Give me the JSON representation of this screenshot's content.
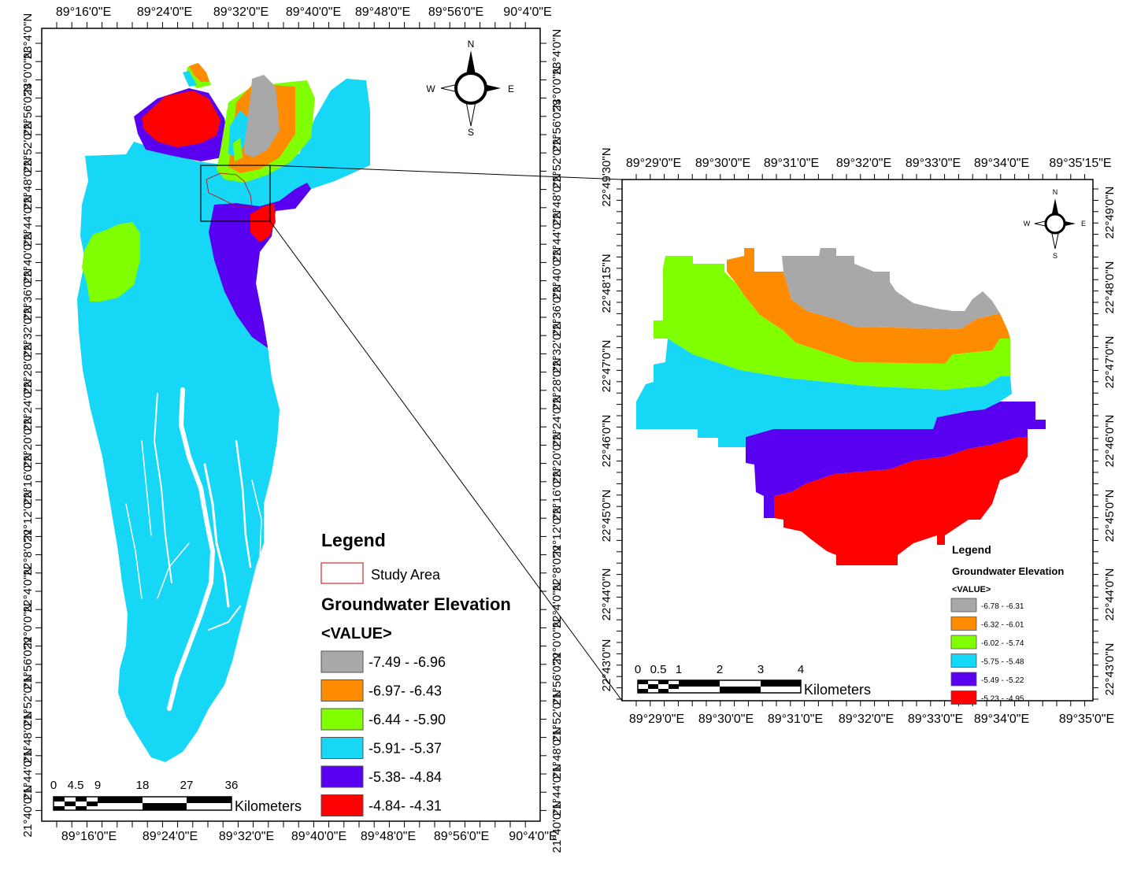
{
  "main_map": {
    "top_lon_labels": [
      "89°16'0\"E",
      "89°24'0\"E",
      "89°32'0\"E",
      "89°40'0\"E",
      "89°48'0\"E",
      "89°56'0\"E",
      "90°4'0\"E"
    ],
    "bottom_lon_labels": [
      "89°16'0\"E",
      "89°24'0\"E",
      "89°32'0\"E",
      "89°40'0\"E",
      "89°48'0\"E",
      "89°56'0\"E",
      "90°4'0\"E"
    ],
    "lat_labels": [
      "23°4'0\"N",
      "23°0'0\"N",
      "22°56'0\"N",
      "22°52'0\"N",
      "22°48'0\"N",
      "22°44'0\"N",
      "22°40'0\"N",
      "22°36'0\"N",
      "22°32'0\"N",
      "22°28'0\"N",
      "22°24'0\"N",
      "22°20'0\"N",
      "22°16'0\"N",
      "22°12'0\"N",
      "22°8'0\"N",
      "22°4'0\"N",
      "22°0'0\"N",
      "21°56'0\"N",
      "21°52'0\"N",
      "21°48'0\"N",
      "21°44'0\"N",
      "21°40'0\"N"
    ],
    "north_arrow": {
      "n": "N",
      "s": "S",
      "e": "E",
      "w": "W"
    },
    "legend": {
      "title": "Legend",
      "study_area_label": "Study Area",
      "layer_title": "Groundwater Elevation",
      "field": "<VALUE>",
      "classes": [
        {
          "label": "-7.49 - -6.96",
          "color": "#a8a8a8"
        },
        {
          "label": "-6.97- -6.43",
          "color": "#ff8c00"
        },
        {
          "label": "-6.44 - -5.90",
          "color": "#80ff00"
        },
        {
          "label": "-5.91- -5.37",
          "color": "#17d7f7"
        },
        {
          "label": "-5.38- -4.84",
          "color": "#5a00f0"
        },
        {
          "label": "-4.84- -4.31",
          "color": "#ff0000"
        }
      ]
    },
    "scale_bar": {
      "ticks": [
        "0",
        "4.5",
        "9",
        "18",
        "27",
        "36"
      ],
      "unit": "Kilometers"
    }
  },
  "inset_map": {
    "top_lon_labels": [
      "89°29'0\"E",
      "89°30'0\"E",
      "89°31'0\"E",
      "89°32'0\"E",
      "89°33'0\"E",
      "89°34'0\"E",
      "89°35'15\"E"
    ],
    "bottom_lon_labels": [
      "89°29'0\"E",
      "89°30'0\"E",
      "89°31'0\"E",
      "89°32'0\"E",
      "89°33'0\"E",
      "89°34'0\"E",
      "89°35'0\"E"
    ],
    "left_lat_labels": [
      "22°49'30\"N",
      "22°48'15\"N",
      "22°47'0\"N",
      "22°46'0\"N",
      "22°45'0\"N",
      "22°44'0\"N",
      "22°43'0\"N"
    ],
    "right_lat_labels": [
      "22°49'0\"N",
      "22°48'0\"N",
      "22°47'0\"N",
      "22°46'0\"N",
      "22°45'0\"N",
      "22°44'0\"N",
      "22°43'0\"N"
    ],
    "north_arrow": {
      "n": "N",
      "s": "S",
      "e": "E",
      "w": "W"
    },
    "legend": {
      "title": "Legend",
      "layer_title": "Groundwater  Elevation",
      "field": "<VALUE>",
      "classes": [
        {
          "label": "-6.78 - -6.31",
          "color": "#a8a8a8"
        },
        {
          "label": "-6.32 - -6.01",
          "color": "#ff8c00"
        },
        {
          "label": "-6.02 - -5.74",
          "color": "#80ff00"
        },
        {
          "label": "-5.75 - -5.48",
          "color": "#17d7f7"
        },
        {
          "label": "-5.49 - -5.22",
          "color": "#5a00f0"
        },
        {
          "label": "-5.23 - -4.95",
          "color": "#ff0000"
        }
      ]
    },
    "scale_bar": {
      "ticks": [
        "0",
        "0.5",
        "1",
        "2",
        "3",
        "4"
      ],
      "unit": "Kilometers"
    }
  }
}
